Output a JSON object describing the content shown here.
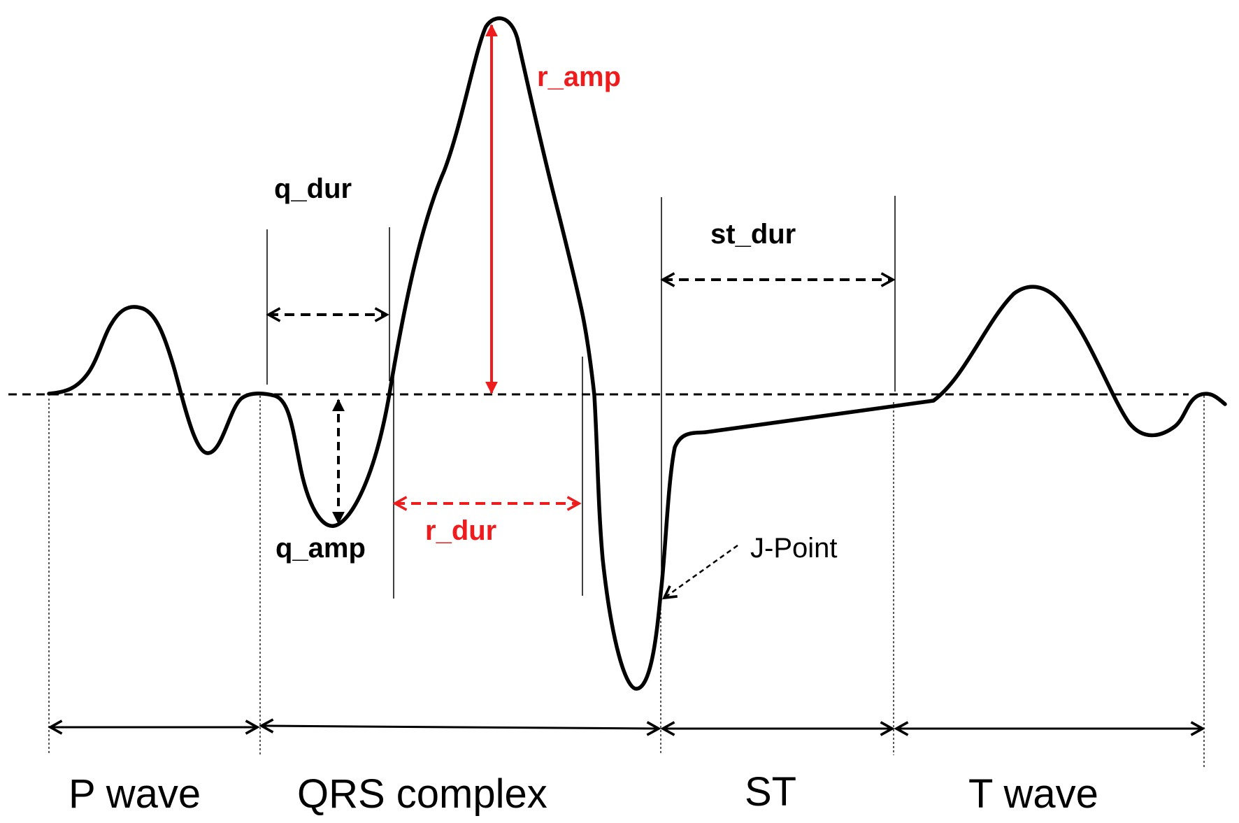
{
  "colors": {
    "ink": "#000000",
    "accent": "#ee1c1c",
    "background": "#ffffff"
  },
  "labels": {
    "r_amp": "r_amp",
    "q_dur": "q_dur",
    "st_dur": "st_dur",
    "q_amp": "q_amp",
    "r_dur": "r_dur",
    "j_point": "J-Point"
  },
  "segments": {
    "p_wave": "P wave",
    "qrs_complex": "QRS complex",
    "st": "ST",
    "t_wave": "T wave"
  }
}
